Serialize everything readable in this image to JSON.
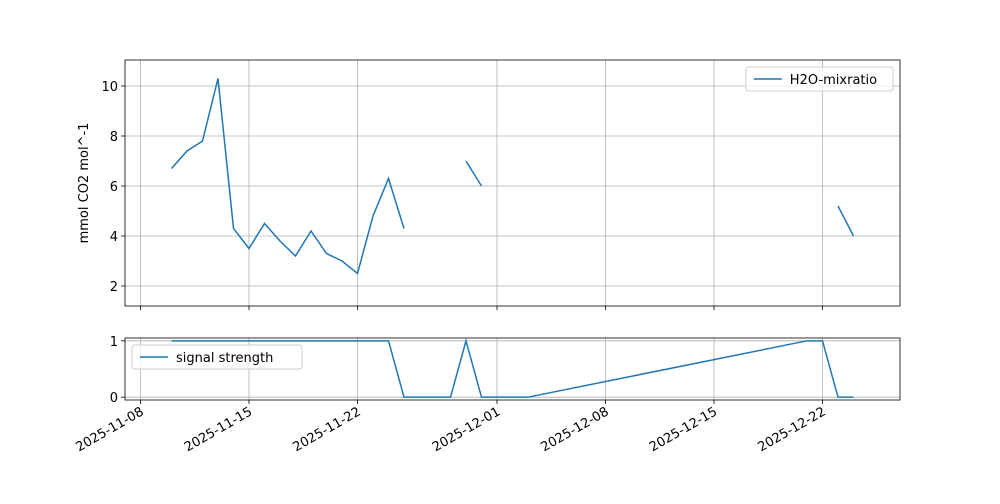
{
  "chart_data": [
    {
      "type": "line",
      "ylabel": "mmol CO2 mol^-1",
      "x": [
        "2025-11-10",
        "2025-11-11",
        "2025-11-12",
        "2025-11-13",
        "2025-11-14",
        "2025-11-15",
        "2025-11-16",
        "2025-11-17",
        "2025-11-18",
        "2025-11-19",
        "2025-11-20",
        "2025-11-21",
        "2025-11-22",
        "2025-11-23",
        "2025-11-24",
        "2025-11-25",
        "2025-11-26",
        "2025-11-29",
        "2025-11-30",
        "2025-12-01",
        "2025-12-23",
        "2025-12-24"
      ],
      "series": [
        {
          "name": "H2O-mixratio",
          "color": "#1f77b4",
          "values": [
            6.7,
            7.4,
            7.8,
            10.3,
            4.3,
            3.5,
            4.5,
            3.8,
            3.2,
            4.2,
            3.3,
            3.0,
            2.5,
            4.8,
            6.3,
            4.3,
            null,
            7.0,
            6.0,
            null,
            5.2,
            4.0
          ]
        }
      ],
      "xlim": [
        "2025-11-07",
        "2025-12-27"
      ],
      "ylim": [
        1.2,
        11.04
      ],
      "yticks": [
        2,
        4,
        6,
        8,
        10
      ],
      "grid": true,
      "legend": "upper right"
    },
    {
      "type": "line",
      "x": [
        "2025-11-10",
        "2025-11-24",
        "2025-11-25",
        "2025-11-28",
        "2025-11-29",
        "2025-11-30",
        "2025-12-03",
        "2025-12-21",
        "2025-12-22",
        "2025-12-23",
        "2025-12-24"
      ],
      "series": [
        {
          "name": "signal strength",
          "color": "#1f77b4",
          "values": [
            1,
            1,
            0,
            0,
            1,
            0,
            0,
            1,
            1,
            0,
            0
          ]
        }
      ],
      "xlim": [
        "2025-11-07",
        "2025-12-27"
      ],
      "ylim": [
        -0.05,
        1.05
      ],
      "yticks": [
        0,
        1
      ],
      "xticks": [
        "2025-11-08",
        "2025-11-15",
        "2025-11-22",
        "2025-12-01",
        "2025-12-08",
        "2025-12-15",
        "2025-12-22"
      ],
      "grid": true,
      "legend": "upper left"
    }
  ]
}
